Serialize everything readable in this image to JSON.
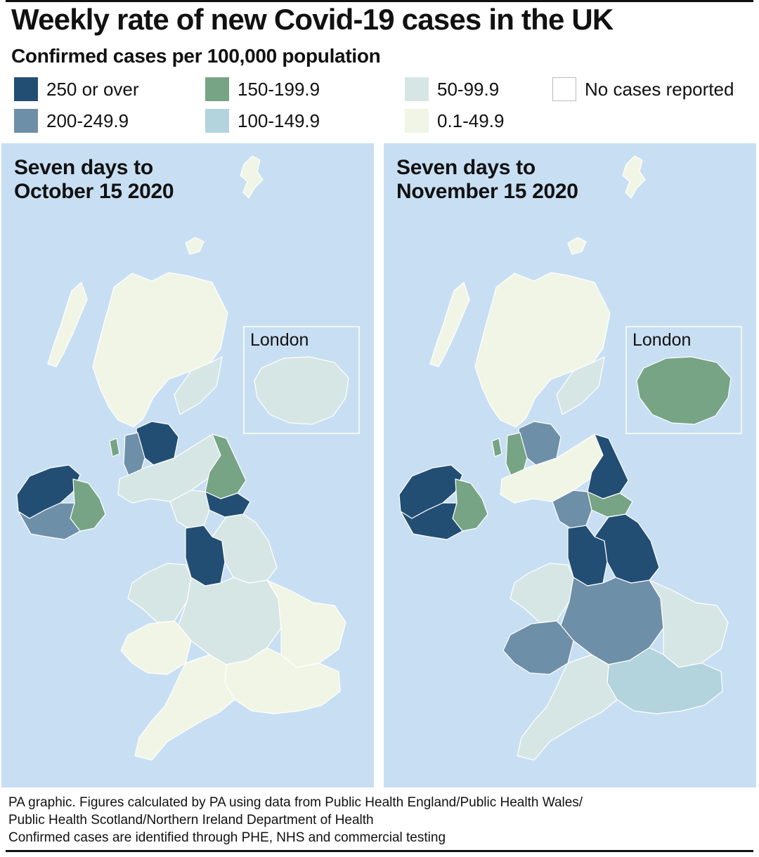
{
  "title": "Weekly rate of new Covid-19 cases in the UK",
  "subtitle": "Confirmed cases per 100,000 population",
  "legend": [
    {
      "key": "c250",
      "label": "250 or over",
      "color": "#234e74"
    },
    {
      "key": "c200",
      "label": "200-249.9",
      "color": "#6e8fa8"
    },
    {
      "key": "c150",
      "label": "150-199.9",
      "color": "#76a485"
    },
    {
      "key": "c100",
      "label": "100-149.9",
      "color": "#b3d3dd"
    },
    {
      "key": "c50",
      "label": "50-99.9",
      "color": "#d6e6e4"
    },
    {
      "key": "c0",
      "label": "0.1-49.9",
      "color": "#f1f5e6"
    },
    {
      "key": "none",
      "label": "No cases reported",
      "color": "#ffffff"
    }
  ],
  "panels": [
    {
      "title_line1": "Seven days to",
      "title_line2": "October 15 2020",
      "inset_label": "London",
      "sea_color": "#c8dff3",
      "regions": {
        "scotland_north": "c0",
        "scotland_east": "c50",
        "scotland_central": "c250",
        "scotland_central_b": "c200",
        "scotland_arran": "c150",
        "scotland_south": "c50",
        "ni_west": "c250",
        "ni_east": "c150",
        "ni_south": "c200",
        "england_north_east": "c150",
        "england_north_east_b": "c250",
        "england_north_west": "c250",
        "england_yorkshire": "c50",
        "england_midlands": "c50",
        "england_east": "c0",
        "england_south_east": "c0",
        "england_south_west": "c0",
        "wales_north": "c50",
        "wales_south": "c0",
        "london_inset": "c50"
      }
    },
    {
      "title_line1": "Seven days to",
      "title_line2": "November 15 2020",
      "inset_label": "London",
      "sea_color": "#c8dff3",
      "regions": {
        "scotland_north": "c0",
        "scotland_east": "c50",
        "scotland_central": "c200",
        "scotland_central_b": "c150",
        "scotland_arran": "c150",
        "scotland_south": "c0",
        "ni_west": "c250",
        "ni_east": "c150",
        "ni_south": "c250",
        "england_north_east": "c250",
        "england_north_east_b": "c150",
        "england_north_west": "c250",
        "england_yorkshire": "c250",
        "england_midlands": "c200",
        "england_east": "c50",
        "england_south_east": "c100",
        "england_south_west": "c50",
        "wales_north": "c50",
        "wales_south": "c200",
        "london_inset": "c150"
      }
    }
  ],
  "footer": {
    "line1": "PA graphic. Figures calculated by PA using data from Public Health England/Public Health Wales/",
    "line2": "Public Health Scotland/Northern Ireland Department of Health",
    "line3": "Confirmed cases are identified through PHE, NHS and commercial testing"
  }
}
